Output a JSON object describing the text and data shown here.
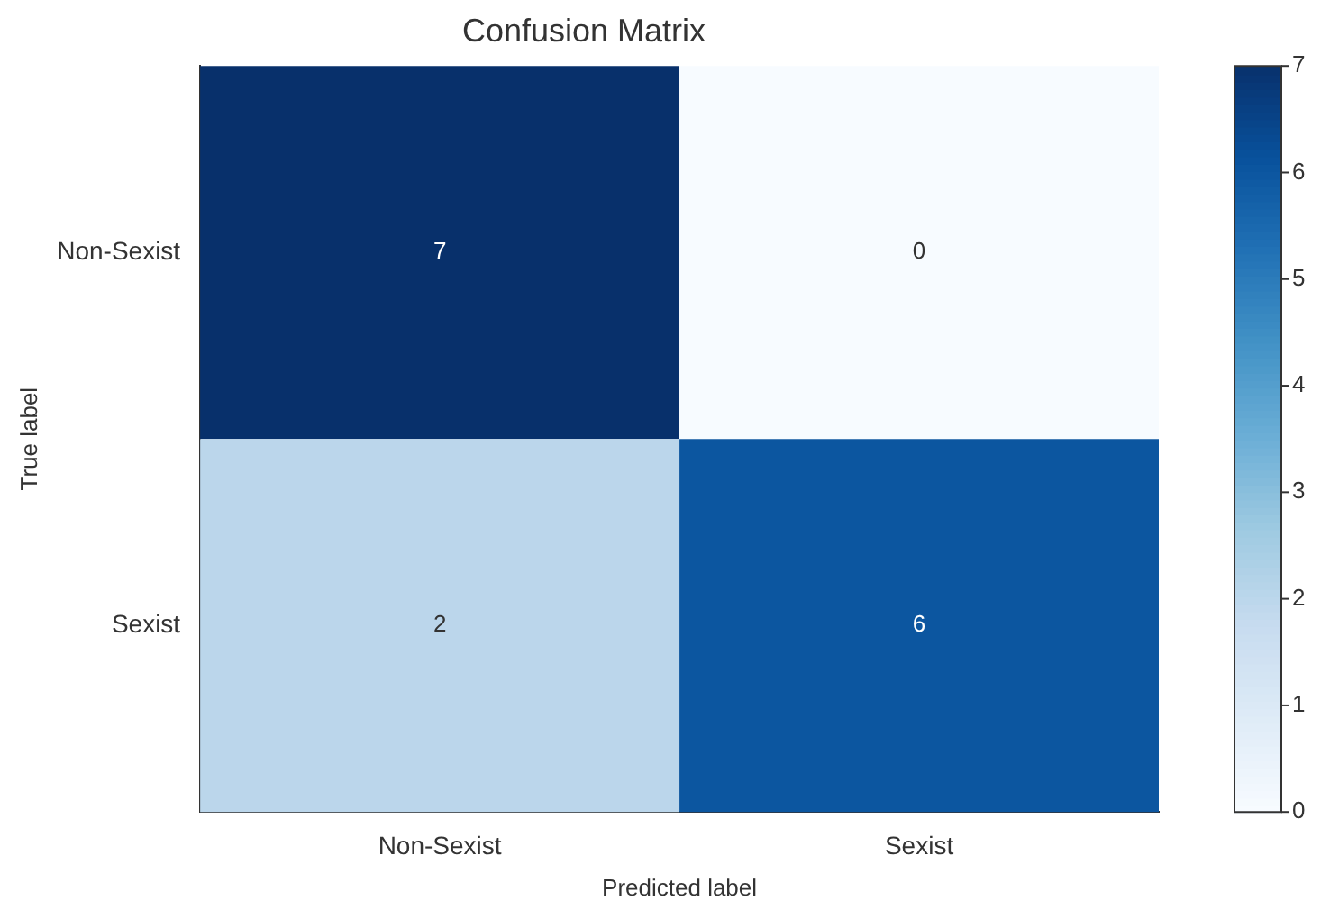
{
  "chart_data": {
    "type": "heatmap",
    "title": "Confusion Matrix",
    "xlabel": "Predicted label",
    "ylabel": "True label",
    "categories": [
      "Non-Sexist",
      "Sexist"
    ],
    "y_categories": [
      "Non-Sexist",
      "Sexist"
    ],
    "cells": [
      [
        7,
        0
      ],
      [
        2,
        6
      ]
    ],
    "data_labels": true,
    "clim": [
      0,
      7
    ],
    "cticks": [
      0,
      1,
      2,
      3,
      4,
      5,
      6,
      7
    ]
  }
}
